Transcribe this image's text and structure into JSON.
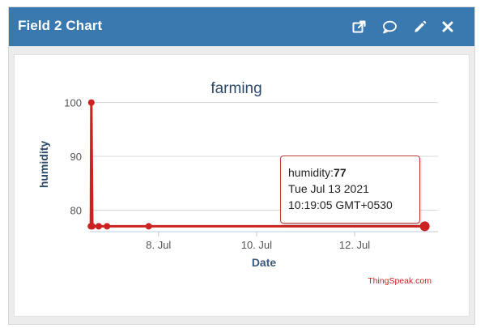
{
  "header": {
    "title": "Field 2 Chart",
    "icons": [
      "external-link-icon",
      "comment-icon",
      "pencil-icon",
      "close-icon"
    ]
  },
  "chart_data": {
    "type": "line",
    "title": "farming",
    "xlabel": "Date",
    "ylabel": "humidity",
    "x_ticks": [
      "8. Jul",
      "10. Jul",
      "12. Jul"
    ],
    "x_tick_days": [
      8,
      10,
      12
    ],
    "xlim_days": [
      6.6,
      13.7
    ],
    "y_ticks": [
      80,
      90,
      100
    ],
    "ylim": [
      76,
      101
    ],
    "grid": true,
    "series": [
      {
        "name": "humidity",
        "color": "#cc2222",
        "points": [
          {
            "day": 6.62,
            "value": 77
          },
          {
            "day": 6.63,
            "value": 100
          },
          {
            "day": 6.65,
            "value": 77
          },
          {
            "day": 6.78,
            "value": 77
          },
          {
            "day": 6.95,
            "value": 77
          },
          {
            "day": 7.8,
            "value": 77
          },
          {
            "day": 13.43,
            "value": 77
          }
        ]
      }
    ],
    "tooltip": {
      "series_label": "humidity:",
      "value": "77",
      "line2": "Tue Jul 13 2021",
      "line3": "10:19:05 GMT+0530"
    },
    "credit": "ThingSpeak.com"
  }
}
